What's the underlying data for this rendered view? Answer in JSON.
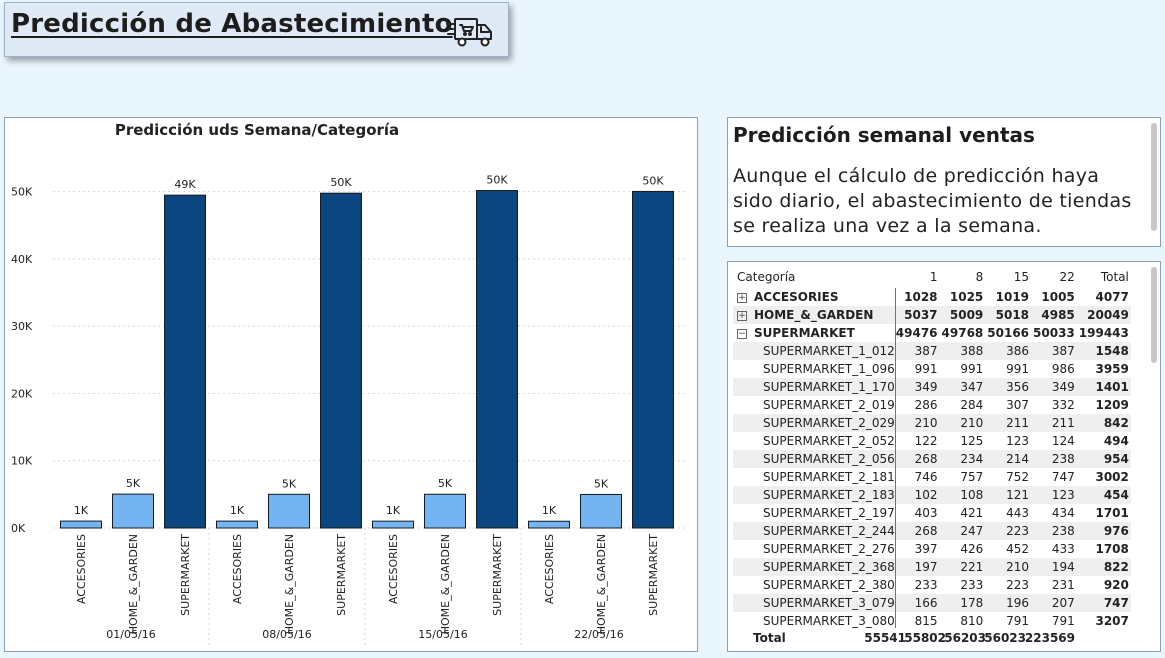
{
  "header": {
    "title": "Predicción de Abastecimiento",
    "icon": "delivery-truck-icon"
  },
  "chart_data": {
    "type": "bar",
    "title": "Predicción uds Semana/Categoría",
    "xlabel": "",
    "ylabel": "",
    "ylim": [
      0,
      55000
    ],
    "yticks": [
      "0K",
      "10K",
      "20K",
      "30K",
      "40K",
      "50K"
    ],
    "ytick_values": [
      0,
      10000,
      20000,
      30000,
      40000,
      50000
    ],
    "groups": [
      "01/05/16",
      "08/05/16",
      "15/05/16",
      "22/05/16"
    ],
    "categories": [
      "ACCESORIES",
      "HOME_&_GARDEN",
      "SUPERMARKET"
    ],
    "values": [
      [
        1028,
        5037,
        49476
      ],
      [
        1025,
        5009,
        49768
      ],
      [
        1019,
        5018,
        50166
      ],
      [
        1005,
        4985,
        50033
      ]
    ],
    "data_labels": [
      [
        "1K",
        "5K",
        "49K"
      ],
      [
        "1K",
        "5K",
        "50K"
      ],
      [
        "1K",
        "5K",
        "50K"
      ],
      [
        "1K",
        "5K",
        "50K"
      ]
    ],
    "colors": [
      "#74b4f2",
      "#74b4f2",
      "#0b4680"
    ]
  },
  "info": {
    "heading": "Predicción semanal ventas",
    "body": "Aunque el cálculo de predicción haya sido diario, el abastecimiento de tiendas se realiza una vez a la semana."
  },
  "matrix": {
    "headers": [
      "Categoría",
      "1",
      "8",
      "15",
      "22",
      "Total"
    ],
    "rows": [
      {
        "label": "ACCESORIES",
        "level": 1,
        "expander": "+",
        "values": [
          "1028",
          "1025",
          "1019",
          "1005",
          "4077"
        ]
      },
      {
        "label": "HOME_&_GARDEN",
        "level": 1,
        "expander": "+",
        "values": [
          "5037",
          "5009",
          "5018",
          "4985",
          "20049"
        ]
      },
      {
        "label": "SUPERMARKET",
        "level": 1,
        "expander": "−",
        "values": [
          "49476",
          "49768",
          "50166",
          "50033",
          "199443"
        ]
      },
      {
        "label": "SUPERMARKET_1_012",
        "level": 2,
        "values": [
          "387",
          "388",
          "386",
          "387",
          "1548"
        ]
      },
      {
        "label": "SUPERMARKET_1_096",
        "level": 2,
        "values": [
          "991",
          "991",
          "991",
          "986",
          "3959"
        ]
      },
      {
        "label": "SUPERMARKET_1_170",
        "level": 2,
        "values": [
          "349",
          "347",
          "356",
          "349",
          "1401"
        ]
      },
      {
        "label": "SUPERMARKET_2_019",
        "level": 2,
        "values": [
          "286",
          "284",
          "307",
          "332",
          "1209"
        ]
      },
      {
        "label": "SUPERMARKET_2_029",
        "level": 2,
        "values": [
          "210",
          "210",
          "211",
          "211",
          "842"
        ]
      },
      {
        "label": "SUPERMARKET_2_052",
        "level": 2,
        "values": [
          "122",
          "125",
          "123",
          "124",
          "494"
        ]
      },
      {
        "label": "SUPERMARKET_2_056",
        "level": 2,
        "values": [
          "268",
          "234",
          "214",
          "238",
          "954"
        ]
      },
      {
        "label": "SUPERMARKET_2_181",
        "level": 2,
        "values": [
          "746",
          "757",
          "752",
          "747",
          "3002"
        ]
      },
      {
        "label": "SUPERMARKET_2_183",
        "level": 2,
        "values": [
          "102",
          "108",
          "121",
          "123",
          "454"
        ]
      },
      {
        "label": "SUPERMARKET_2_197",
        "level": 2,
        "values": [
          "403",
          "421",
          "443",
          "434",
          "1701"
        ]
      },
      {
        "label": "SUPERMARKET_2_244",
        "level": 2,
        "values": [
          "268",
          "247",
          "223",
          "238",
          "976"
        ]
      },
      {
        "label": "SUPERMARKET_2_276",
        "level": 2,
        "values": [
          "397",
          "426",
          "452",
          "433",
          "1708"
        ]
      },
      {
        "label": "SUPERMARKET_2_368",
        "level": 2,
        "values": [
          "197",
          "221",
          "210",
          "194",
          "822"
        ]
      },
      {
        "label": "SUPERMARKET_2_380",
        "level": 2,
        "values": [
          "233",
          "233",
          "223",
          "231",
          "920"
        ]
      },
      {
        "label": "SUPERMARKET_3_079",
        "level": 2,
        "values": [
          "166",
          "178",
          "196",
          "207",
          "747"
        ]
      },
      {
        "label": "SUPERMARKET_3_080",
        "level": 2,
        "values": [
          "815",
          "810",
          "791",
          "791",
          "3207"
        ]
      }
    ],
    "total": {
      "label": "Total",
      "values": [
        "55541",
        "55802",
        "56203",
        "56023",
        "223569"
      ]
    }
  }
}
